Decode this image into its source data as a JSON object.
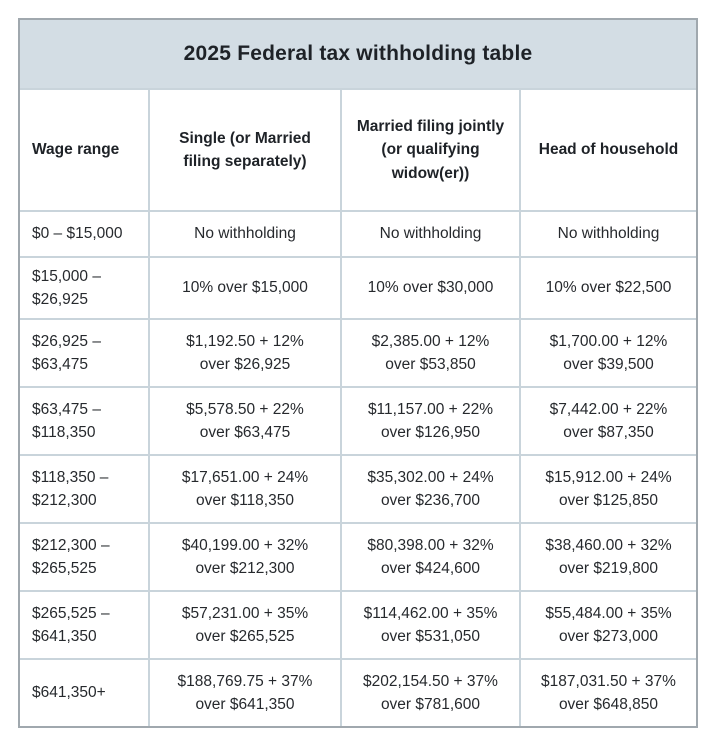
{
  "colors": {
    "title_band_background": "#d3dde4",
    "gridline": "#c9d4db",
    "outer_border": "#a0a8ae",
    "cell_background": "#ffffff",
    "text": "#26292d"
  },
  "chart_data": {
    "type": "table",
    "title": "2025 Federal tax withholding table",
    "columns": [
      "Wage range",
      "Single (or Married\nfiling separately)",
      "Married filing jointly\n(or qualifying\nwidow(er))",
      "Head of household"
    ],
    "rows": [
      {
        "wage_range": "$0 – $15,000",
        "single": "No withholding",
        "married_filing_jointly": "No withholding",
        "head_of_household": "No withholding"
      },
      {
        "wage_range": "$15,000 –\n$26,925",
        "single": "10% over $15,000",
        "married_filing_jointly": "10% over $30,000",
        "head_of_household": "10% over $22,500"
      },
      {
        "wage_range": "$26,925 –\n$63,475",
        "single": "$1,192.50 + 12%\nover $26,925",
        "married_filing_jointly": "$2,385.00 + 12%\nover $53,850",
        "head_of_household": "$1,700.00 + 12%\nover $39,500"
      },
      {
        "wage_range": "$63,475 –\n$118,350",
        "single": "$5,578.50 + 22%\nover $63,475",
        "married_filing_jointly": "$11,157.00 + 22%\nover $126,950",
        "head_of_household": "$7,442.00 + 22%\nover $87,350"
      },
      {
        "wage_range": "$118,350 –\n$212,300",
        "single": "$17,651.00 + 24%\nover $118,350",
        "married_filing_jointly": "$35,302.00 + 24%\nover $236,700",
        "head_of_household": "$15,912.00 + 24%\nover $125,850"
      },
      {
        "wage_range": "$212,300 –\n$265,525",
        "single": "$40,199.00 + 32%\nover $212,300",
        "married_filing_jointly": "$80,398.00 + 32%\nover $424,600",
        "head_of_household": "$38,460.00 + 32%\nover $219,800"
      },
      {
        "wage_range": "$265,525 –\n$641,350",
        "single": "$57,231.00 + 35%\nover $265,525",
        "married_filing_jointly": "$114,462.00 + 35%\nover $531,050",
        "head_of_household": "$55,484.00 + 35%\nover $273,000"
      },
      {
        "wage_range": "$641,350+",
        "single": "$188,769.75 + 37%\nover $641,350",
        "married_filing_jointly": "$202,154.50 + 37%\nover $781,600",
        "head_of_household": "$187,031.50 + 37%\nover $648,850"
      }
    ]
  }
}
